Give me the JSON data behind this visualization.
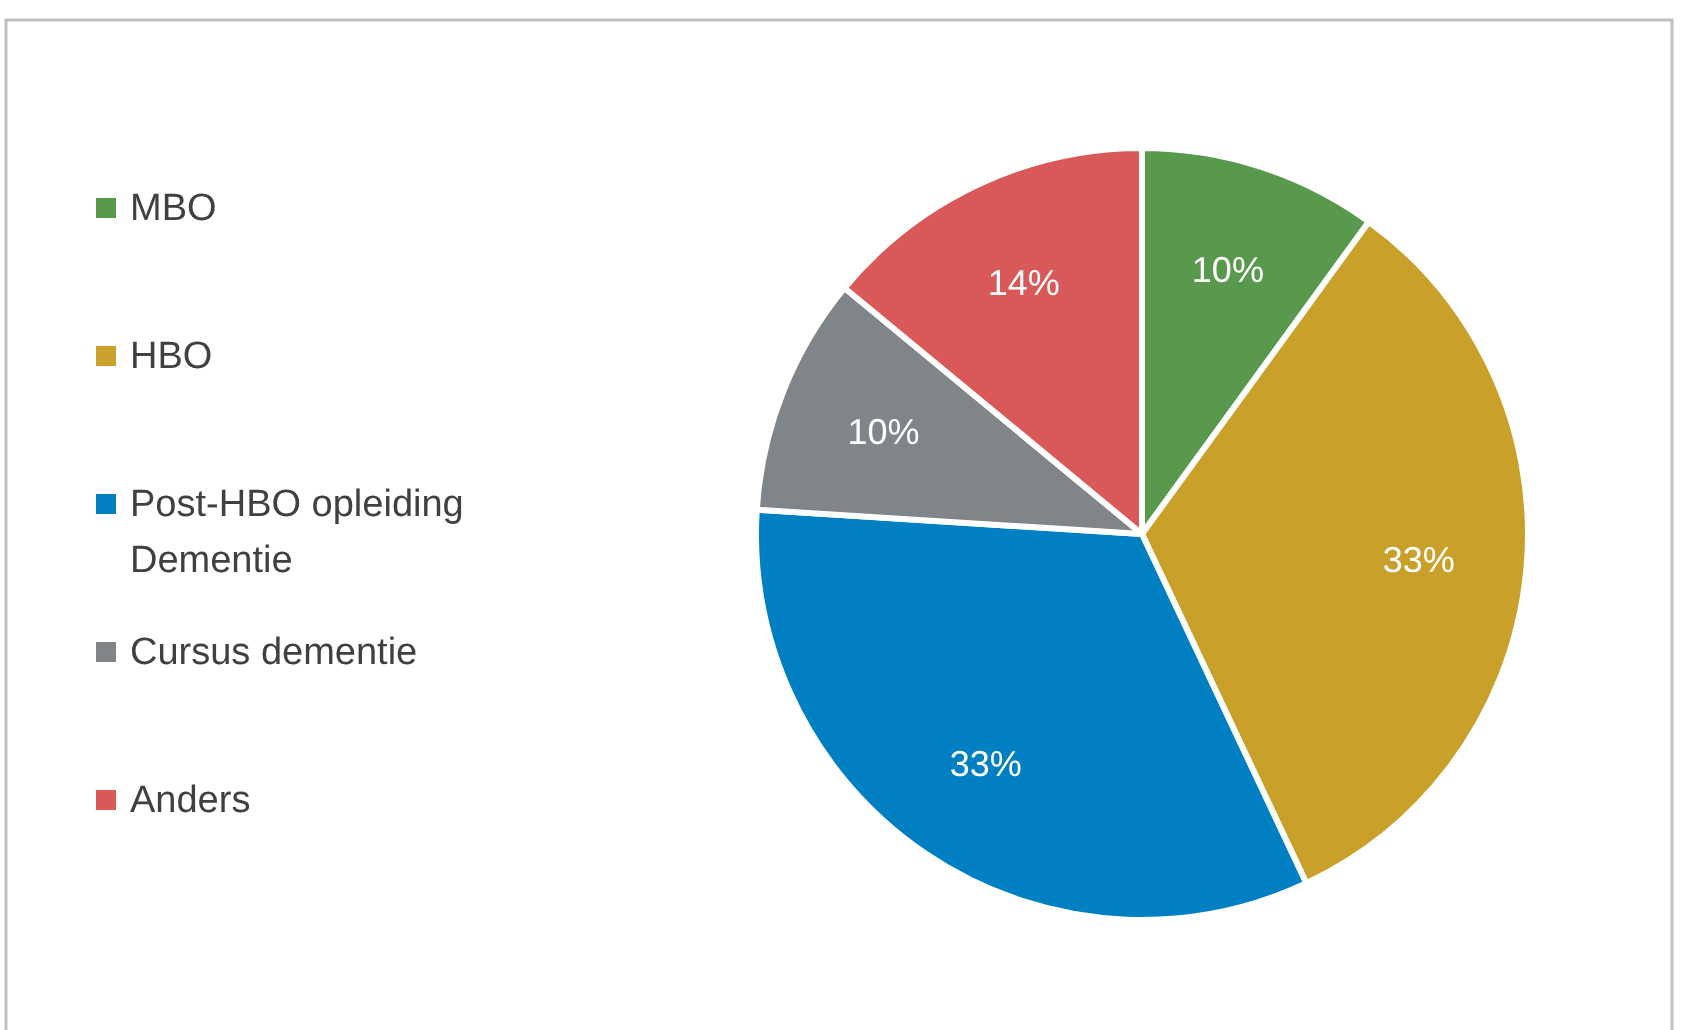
{
  "chart_data": {
    "type": "pie",
    "categories": [
      "MBO",
      "HBO",
      "Post-HBO opleiding Dementie",
      "Cursus dementie",
      "Anders"
    ],
    "values": [
      10,
      33,
      33,
      10,
      14
    ],
    "colors": [
      "#58994d",
      "#c9a02a",
      "#0080c2",
      "#7f8588",
      "#d95858"
    ],
    "value_labels": [
      "10%",
      "33%",
      "33%",
      "10%",
      "14%"
    ],
    "legend": "left"
  }
}
